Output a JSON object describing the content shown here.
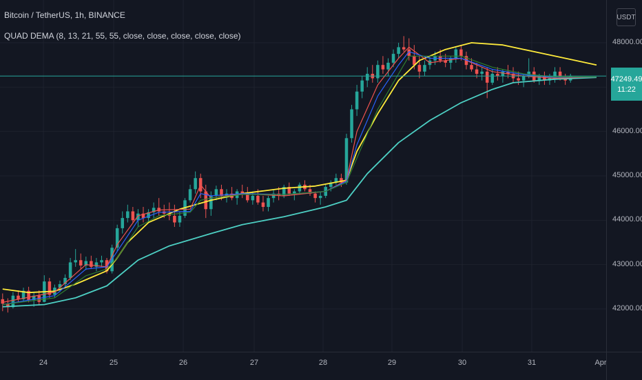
{
  "header": {
    "symbol_title": "Bitcoin / TetherUS, 1h, BINANCE",
    "indicator_label": "QUAD DEMA (8, 13, 21, 55, 55, close, close, close, close, close)"
  },
  "price_axis": {
    "currency": "USDT",
    "last_price": "47249.49",
    "countdown": "11:22"
  },
  "colors": {
    "background": "#131722",
    "grid": "#1e222d",
    "up_candle": "#26a69a",
    "down_candle": "#ef5350",
    "dema_8": "#ef5350",
    "dema_13": "#2962ff",
    "dema_21": "#2e7d32",
    "dema_55_yellow": "#ffeb3b",
    "dema_55_teal": "#4dd0c4",
    "last_price_line": "#26a69a"
  },
  "chart_data": {
    "type": "candlestick",
    "title": "Bitcoin / TetherUS, 1h, BINANCE",
    "x_tick_labels": [
      "24",
      "25",
      "26",
      "27",
      "28",
      "29",
      "30",
      "31",
      "Apr"
    ],
    "y_tick_labels": [
      "48000.00",
      "47000.00",
      "46000.00",
      "45000.00",
      "44000.00",
      "43000.00",
      "42000.00"
    ],
    "y_ticks": [
      48000,
      47000,
      46000,
      45000,
      44000,
      43000,
      42000
    ],
    "ylim": [
      41300,
      48800
    ],
    "grid": true,
    "last_price": 47249.49,
    "candles": [
      [
        42220,
        42350,
        41950,
        42120
      ],
      [
        42120,
        42240,
        41920,
        42040
      ],
      [
        42040,
        42380,
        42010,
        42300
      ],
      [
        42300,
        42420,
        42160,
        42220
      ],
      [
        42220,
        42480,
        42170,
        42410
      ],
      [
        42410,
        42500,
        42150,
        42200
      ],
      [
        42200,
        42360,
        42050,
        42300
      ],
      [
        42300,
        42420,
        42080,
        42160
      ],
      [
        42160,
        42760,
        42150,
        42620
      ],
      [
        42620,
        42700,
        42250,
        42320
      ],
      [
        42320,
        42550,
        42250,
        42480
      ],
      [
        42480,
        42640,
        42380,
        42560
      ],
      [
        42560,
        42780,
        42480,
        42700
      ],
      [
        42700,
        43150,
        42650,
        43050
      ],
      [
        43050,
        43350,
        42950,
        43100
      ],
      [
        43100,
        43250,
        42900,
        42980
      ],
      [
        42980,
        43180,
        42880,
        43080
      ],
      [
        43080,
        43200,
        42900,
        42950
      ],
      [
        42950,
        43150,
        42850,
        43050
      ],
      [
        43050,
        43200,
        42950,
        43100
      ],
      [
        43100,
        43150,
        42800,
        42850
      ],
      [
        42850,
        43450,
        42800,
        43380
      ],
      [
        43380,
        43900,
        43300,
        43820
      ],
      [
        43820,
        44200,
        43700,
        44050
      ],
      [
        44050,
        44350,
        43950,
        44200
      ],
      [
        44200,
        44300,
        43950,
        44000
      ],
      [
        44000,
        44250,
        43850,
        44150
      ],
      [
        44150,
        44300,
        43950,
        44050
      ],
      [
        44050,
        44250,
        43950,
        44180
      ],
      [
        44180,
        44400,
        44050,
        44280
      ],
      [
        44280,
        44500,
        44100,
        44200
      ],
      [
        44200,
        44350,
        44050,
        44150
      ],
      [
        44150,
        44400,
        44000,
        44100
      ],
      [
        44100,
        44350,
        43850,
        43950
      ],
      [
        43950,
        44200,
        43850,
        44100
      ],
      [
        44100,
        44500,
        44050,
        44450
      ],
      [
        44450,
        44800,
        44400,
        44700
      ],
      [
        44700,
        45100,
        44600,
        44950
      ],
      [
        44950,
        45050,
        44500,
        44650
      ],
      [
        44650,
        44800,
        44050,
        44250
      ],
      [
        44250,
        44650,
        44100,
        44550
      ],
      [
        44550,
        44780,
        44450,
        44700
      ],
      [
        44700,
        44800,
        44450,
        44550
      ],
      [
        44550,
        44700,
        44400,
        44600
      ],
      [
        44600,
        44750,
        44450,
        44500
      ],
      [
        44500,
        44700,
        44350,
        44650
      ],
      [
        44650,
        44800,
        44500,
        44600
      ],
      [
        44600,
        44750,
        44400,
        44450
      ],
      [
        44450,
        44650,
        44350,
        44550
      ],
      [
        44550,
        44700,
        44350,
        44400
      ],
      [
        44400,
        44550,
        44200,
        44300
      ],
      [
        44300,
        44550,
        44200,
        44500
      ],
      [
        44500,
        44700,
        44400,
        44600
      ],
      [
        44600,
        44750,
        44450,
        44550
      ],
      [
        44550,
        44800,
        44500,
        44750
      ],
      [
        44750,
        44850,
        44550,
        44600
      ],
      [
        44600,
        44700,
        44450,
        44650
      ],
      [
        44650,
        44850,
        44600,
        44800
      ],
      [
        44800,
        44900,
        44650,
        44700
      ],
      [
        44700,
        44800,
        44550,
        44600
      ],
      [
        44600,
        44650,
        44400,
        44500
      ],
      [
        44500,
        44650,
        44350,
        44550
      ],
      [
        44550,
        44800,
        44500,
        44750
      ],
      [
        44750,
        44900,
        44650,
        44850
      ],
      [
        44850,
        45050,
        44800,
        44950
      ],
      [
        44950,
        45050,
        44750,
        44850
      ],
      [
        44850,
        45950,
        44800,
        45850
      ],
      [
        45850,
        46600,
        45750,
        46500
      ],
      [
        46500,
        47050,
        46350,
        46900
      ],
      [
        46900,
        47250,
        46750,
        47150
      ],
      [
        47150,
        47450,
        47000,
        47300
      ],
      [
        47300,
        47500,
        47100,
        47200
      ],
      [
        47200,
        47600,
        47100,
        47500
      ],
      [
        47500,
        47700,
        47300,
        47400
      ],
      [
        47400,
        47650,
        47250,
        47550
      ],
      [
        47550,
        47850,
        47450,
        47750
      ],
      [
        47750,
        48000,
        47650,
        47900
      ],
      [
        47900,
        48150,
        47800,
        47850
      ],
      [
        47850,
        48100,
        47600,
        47700
      ],
      [
        47700,
        47950,
        47400,
        47500
      ],
      [
        47500,
        47700,
        47200,
        47350
      ],
      [
        47350,
        47600,
        47250,
        47500
      ],
      [
        47500,
        47700,
        47400,
        47600
      ],
      [
        47600,
        47800,
        47500,
        47700
      ],
      [
        47700,
        47850,
        47550,
        47600
      ],
      [
        47600,
        47750,
        47450,
        47550
      ],
      [
        47550,
        47700,
        47400,
        47650
      ],
      [
        47650,
        47900,
        47550,
        47850
      ],
      [
        47850,
        47950,
        47600,
        47700
      ],
      [
        47700,
        47800,
        47400,
        47500
      ],
      [
        47500,
        47650,
        47350,
        47400
      ],
      [
        47400,
        47550,
        47200,
        47300
      ],
      [
        47300,
        47450,
        47150,
        47350
      ],
      [
        47350,
        47450,
        46750,
        47100
      ],
      [
        47100,
        47400,
        47050,
        47300
      ],
      [
        47300,
        47450,
        47150,
        47250
      ],
      [
        47250,
        47400,
        47100,
        47350
      ],
      [
        47350,
        47500,
        47200,
        47300
      ],
      [
        47300,
        47450,
        47100,
        47200
      ],
      [
        47200,
        47350,
        47050,
        47150
      ],
      [
        47150,
        47300,
        47000,
        47250
      ],
      [
        47250,
        47650,
        47200,
        47350
      ],
      [
        47350,
        47450,
        47100,
        47150
      ],
      [
        47150,
        47300,
        47050,
        47250
      ],
      [
        47250,
        47350,
        47050,
        47150
      ],
      [
        47150,
        47300,
        47050,
        47200
      ],
      [
        47200,
        47450,
        47100,
        47350
      ],
      [
        47350,
        47450,
        47150,
        47200
      ],
      [
        47200,
        47300,
        47050,
        47150
      ],
      [
        47150,
        47300,
        47100,
        47249.49
      ]
    ],
    "series": [
      {
        "period": 55,
        "color": "#ffeb3b",
        "values": [
          [
            0,
            42450
          ],
          [
            5,
            42370
          ],
          [
            10,
            42400
          ],
          [
            14,
            42560
          ],
          [
            20,
            42860
          ],
          [
            22,
            43150
          ],
          [
            24,
            43500
          ],
          [
            28,
            43950
          ],
          [
            34,
            44250
          ],
          [
            40,
            44450
          ],
          [
            46,
            44600
          ],
          [
            54,
            44720
          ],
          [
            60,
            44770
          ],
          [
            66,
            44900
          ],
          [
            68,
            45550
          ],
          [
            72,
            46400
          ],
          [
            76,
            47150
          ],
          [
            80,
            47600
          ],
          [
            85,
            47850
          ],
          [
            90,
            48000
          ],
          [
            96,
            47950
          ],
          [
            102,
            47800
          ],
          [
            110,
            47600
          ],
          [
            114,
            47500
          ]
        ]
      },
      {
        "period": 55,
        "color": "#4dd0c4",
        "values": [
          [
            0,
            42050
          ],
          [
            8,
            42100
          ],
          [
            14,
            42250
          ],
          [
            20,
            42520
          ],
          [
            26,
            43100
          ],
          [
            32,
            43420
          ],
          [
            40,
            43700
          ],
          [
            46,
            43900
          ],
          [
            54,
            44080
          ],
          [
            62,
            44300
          ],
          [
            66,
            44450
          ],
          [
            70,
            45050
          ],
          [
            76,
            45750
          ],
          [
            82,
            46250
          ],
          [
            88,
            46650
          ],
          [
            94,
            46950
          ],
          [
            98,
            47100
          ],
          [
            106,
            47180
          ],
          [
            114,
            47220
          ]
        ]
      },
      {
        "period": 8,
        "color": "#ef5350",
        "values": [
          [
            0,
            42150
          ],
          [
            10,
            42380
          ],
          [
            16,
            43000
          ],
          [
            20,
            42950
          ],
          [
            22,
            43450
          ],
          [
            26,
            44100
          ],
          [
            30,
            44230
          ],
          [
            36,
            44250
          ],
          [
            38,
            44800
          ],
          [
            40,
            44500
          ],
          [
            46,
            44600
          ],
          [
            54,
            44550
          ],
          [
            62,
            44650
          ],
          [
            66,
            44900
          ],
          [
            68,
            46000
          ],
          [
            72,
            47050
          ],
          [
            76,
            47650
          ],
          [
            78,
            47900
          ],
          [
            82,
            47550
          ],
          [
            88,
            47650
          ],
          [
            94,
            47350
          ],
          [
            100,
            47250
          ],
          [
            106,
            47200
          ],
          [
            114,
            47230
          ]
        ]
      },
      {
        "period": 13,
        "color": "#2962ff",
        "values": [
          [
            0,
            42100
          ],
          [
            10,
            42300
          ],
          [
            16,
            42900
          ],
          [
            20,
            42950
          ],
          [
            22,
            43300
          ],
          [
            26,
            44000
          ],
          [
            30,
            44180
          ],
          [
            36,
            44200
          ],
          [
            38,
            44600
          ],
          [
            40,
            44550
          ],
          [
            46,
            44600
          ],
          [
            54,
            44580
          ],
          [
            62,
            44650
          ],
          [
            66,
            44880
          ],
          [
            68,
            45700
          ],
          [
            72,
            46800
          ],
          [
            76,
            47500
          ],
          [
            78,
            47800
          ],
          [
            82,
            47650
          ],
          [
            88,
            47650
          ],
          [
            94,
            47400
          ],
          [
            100,
            47280
          ],
          [
            106,
            47220
          ],
          [
            114,
            47230
          ]
        ]
      },
      {
        "period": 21,
        "color": "#2e7d32",
        "values": [
          [
            0,
            42100
          ],
          [
            10,
            42250
          ],
          [
            16,
            42750
          ],
          [
            20,
            42900
          ],
          [
            22,
            43150
          ],
          [
            26,
            43850
          ],
          [
            30,
            44100
          ],
          [
            36,
            44180
          ],
          [
            38,
            44450
          ],
          [
            40,
            44500
          ],
          [
            46,
            44580
          ],
          [
            54,
            44580
          ],
          [
            62,
            44650
          ],
          [
            66,
            44850
          ],
          [
            68,
            45400
          ],
          [
            72,
            46500
          ],
          [
            76,
            47300
          ],
          [
            78,
            47700
          ],
          [
            82,
            47700
          ],
          [
            88,
            47700
          ],
          [
            94,
            47450
          ],
          [
            100,
            47300
          ],
          [
            106,
            47230
          ],
          [
            114,
            47230
          ]
        ]
      }
    ]
  }
}
